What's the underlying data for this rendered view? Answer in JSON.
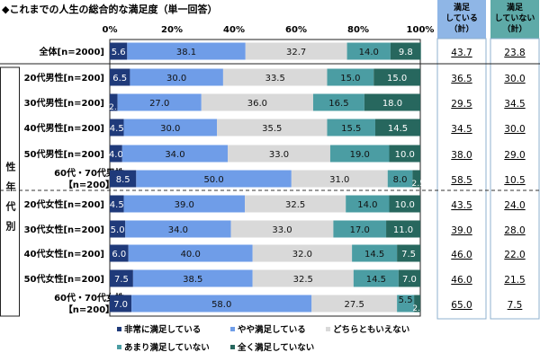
{
  "chart_data": {
    "type": "bar",
    "orientation": "horizontal-stacked-100",
    "title": "◆これまでの人生の総合的な満足度（単一回答）",
    "xlim": [
      0,
      100
    ],
    "x_ticks": [
      "0%",
      "20%",
      "40%",
      "60%",
      "80%",
      "100%"
    ],
    "group_label": "性年代別",
    "categories": [
      "全体[n=2000]",
      "20代男性[n=200]",
      "30代男性[n=200]",
      "40代男性[n=200]",
      "50代男性[n=200]",
      "60代・70代男性\n【n=200】",
      "20代女性[n=200]",
      "30代女性[n=200]",
      "40代女性[n=200]",
      "50代女性[n=200]",
      "60代・70代女性\n【n=200】"
    ],
    "series": [
      {
        "name": "非常に満足している",
        "color": "#1f3a7a",
        "values": [
          5.6,
          6.5,
          2.5,
          4.5,
          4.0,
          8.5,
          4.5,
          5.0,
          6.0,
          7.5,
          7.0
        ]
      },
      {
        "name": "やや満足している",
        "color": "#6f9de8",
        "values": [
          38.1,
          30.0,
          27.0,
          30.0,
          34.0,
          50.0,
          39.0,
          34.0,
          40.0,
          38.5,
          58.0
        ]
      },
      {
        "name": "どちらともいえない",
        "color": "#d9d9d9",
        "values": [
          32.7,
          33.5,
          36.0,
          35.5,
          33.0,
          31.0,
          32.5,
          33.0,
          32.0,
          32.5,
          27.5
        ]
      },
      {
        "name": "あまり満足していない",
        "color": "#4b9da3",
        "values": [
          14.0,
          15.0,
          16.5,
          15.5,
          19.0,
          8.0,
          14.0,
          17.0,
          14.5,
          14.5,
          5.5
        ]
      },
      {
        "name": "全く満足していない",
        "color": "#27675e",
        "values": [
          9.8,
          15.0,
          18.0,
          14.5,
          10.0,
          2.5,
          10.0,
          11.0,
          7.5,
          7.0,
          2.0
        ]
      }
    ],
    "totals": [
      {
        "header": "満足\nしている\n（計）",
        "color": "#8fb6e6",
        "values": [
          "43.7",
          "36.5",
          "29.5",
          "34.5",
          "38.0",
          "58.5",
          "43.5",
          "39.0",
          "46.0",
          "46.0",
          "65.0"
        ]
      },
      {
        "header": "満足\nしていない\n（計）",
        "color": "#5eaaa8",
        "values": [
          "23.8",
          "30.0",
          "34.5",
          "30.0",
          "29.0",
          "10.5",
          "24.0",
          "28.0",
          "22.0",
          "21.5",
          "7.5"
        ]
      }
    ],
    "legend_position": "bottom"
  }
}
